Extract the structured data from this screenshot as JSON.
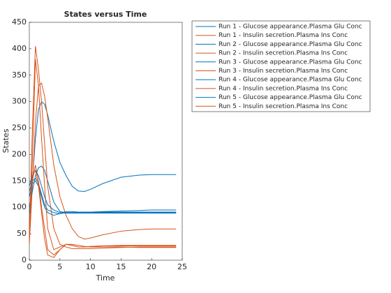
{
  "chart_data": {
    "type": "line",
    "title": "States versus Time",
    "xlabel": "Time",
    "ylabel": "States",
    "x": [
      0,
      0.5,
      1,
      1.5,
      2,
      2.5,
      3,
      4,
      5,
      6,
      7,
      8,
      9,
      10,
      12,
      15,
      18,
      20,
      24
    ],
    "xlim": [
      0,
      25
    ],
    "xticks": [
      0,
      5,
      10,
      15,
      20,
      25
    ],
    "ylim": [
      0,
      450
    ],
    "yticks": [
      0,
      50,
      100,
      150,
      200,
      250,
      300,
      350,
      400,
      450
    ],
    "legend_position": "northeastoutside",
    "series": [
      {
        "name": "Run 1 - Glucose appearance.Plasma Glu Conc",
        "color": "#0072bd",
        "values": [
          90,
          150,
          230,
          285,
          300,
          295,
          275,
          225,
          185,
          160,
          140,
          131,
          130,
          134,
          145,
          157,
          161,
          162,
          162
        ]
      },
      {
        "name": "Run 1 - Insulin secretion.Plasma Ins Conc",
        "color": "#d95319",
        "values": [
          30,
          140,
          260,
          330,
          335,
          310,
          270,
          180,
          120,
          85,
          60,
          45,
          40,
          42,
          48,
          55,
          58,
          59,
          59
        ]
      },
      {
        "name": "Run 2 - Glucose appearance.Plasma Glu Conc",
        "color": "#0072bd",
        "values": [
          100,
          130,
          160,
          175,
          178,
          170,
          150,
          110,
          92,
          90,
          90,
          90,
          90,
          91,
          92,
          93,
          94,
          95,
          95
        ]
      },
      {
        "name": "Run 2 - Insulin secretion.Plasma Ins Conc",
        "color": "#d95319",
        "values": [
          40,
          250,
          405,
          360,
          300,
          220,
          140,
          60,
          30,
          25,
          22,
          22,
          22,
          22,
          23,
          24,
          25,
          25,
          25
        ]
      },
      {
        "name": "Run 3 - Glucose appearance.Plasma Glu Conc",
        "color": "#0072bd",
        "values": [
          120,
          145,
          150,
          140,
          120,
          100,
          90,
          85,
          88,
          92,
          92,
          91,
          91,
          91,
          91,
          91,
          91,
          91,
          91
        ]
      },
      {
        "name": "Run 3 - Insulin secretion.Plasma Ins Conc",
        "color": "#d95319",
        "values": [
          50,
          190,
          380,
          330,
          230,
          140,
          60,
          20,
          25,
          30,
          28,
          25,
          25,
          26,
          27,
          28,
          28,
          28,
          28
        ]
      },
      {
        "name": "Run 4 - Glucose appearance.Plasma Glu Conc",
        "color": "#0072bd",
        "values": [
          130,
          150,
          155,
          145,
          125,
          105,
          95,
          90,
          88,
          90,
          90,
          90,
          90,
          90,
          90,
          90,
          90,
          90,
          90
        ]
      },
      {
        "name": "Run 4 - Insulin secretion.Plasma Ins Conc",
        "color": "#d95319",
        "values": [
          60,
          150,
          180,
          150,
          100,
          60,
          20,
          10,
          20,
          30,
          28,
          25,
          25,
          26,
          27,
          27,
          27,
          27,
          27
        ]
      },
      {
        "name": "Run 5 - Glucose appearance.Plasma Glu Conc",
        "color": "#0072bd",
        "values": [
          140,
          160,
          170,
          160,
          140,
          120,
          105,
          95,
          90,
          89,
          89,
          89,
          89,
          89,
          89,
          89,
          89,
          89,
          89
        ]
      },
      {
        "name": "Run 5 - Insulin secretion.Plasma Ins Conc",
        "color": "#d95319",
        "values": [
          70,
          160,
          170,
          140,
          90,
          40,
          10,
          5,
          20,
          30,
          30,
          28,
          26,
          25,
          25,
          25,
          24,
          24,
          24
        ]
      }
    ]
  }
}
